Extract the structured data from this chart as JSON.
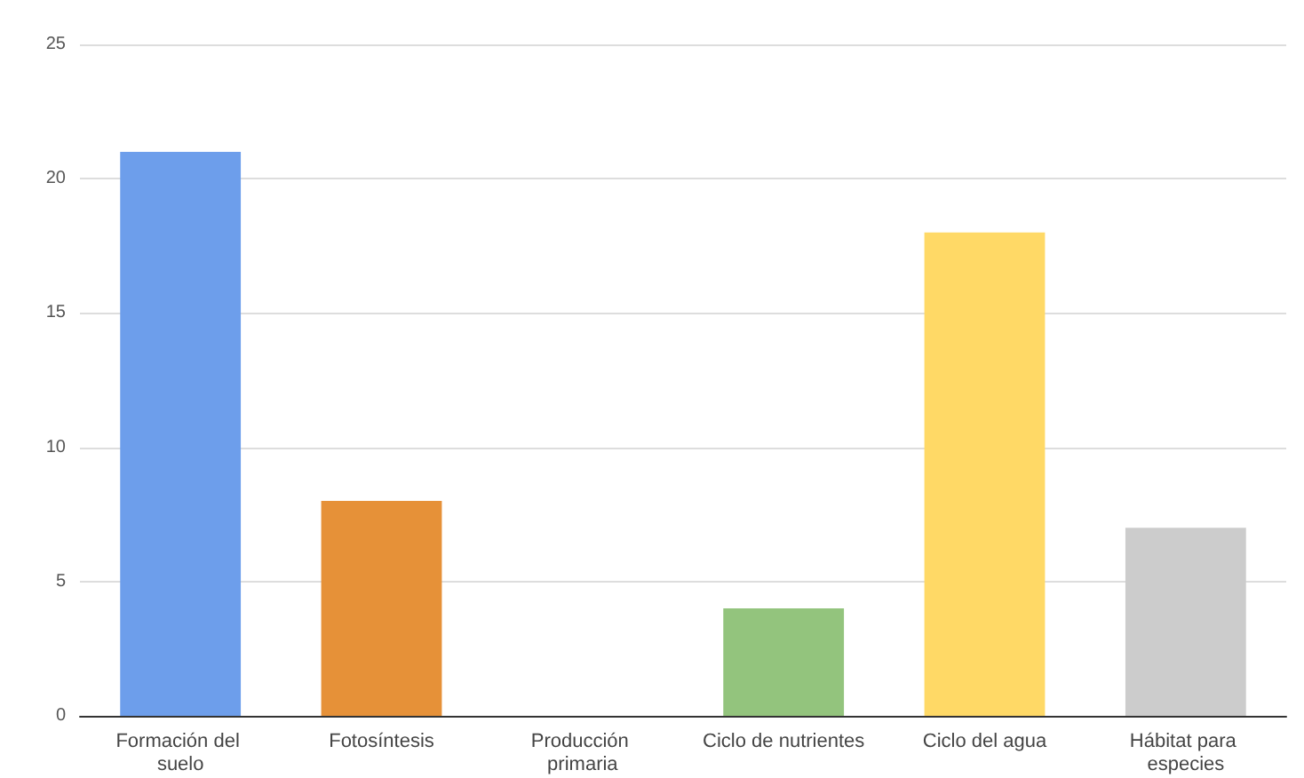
{
  "chart_data": {
    "type": "bar",
    "categories": [
      "Formación del suelo",
      "Fotosíntesis",
      "Producción primaria",
      "Ciclo de nutrientes",
      "Ciclo del agua",
      "Hábitat para especies"
    ],
    "values": [
      21,
      8,
      0,
      4,
      18,
      7
    ],
    "colors": [
      "#6d9eeb",
      "#e69138",
      "#8e7cc3",
      "#93c47d",
      "#ffd966",
      "#cccccc"
    ],
    "ylim": [
      0,
      25
    ],
    "yticks": [
      0,
      5,
      10,
      15,
      20,
      25
    ],
    "grid": "y"
  }
}
